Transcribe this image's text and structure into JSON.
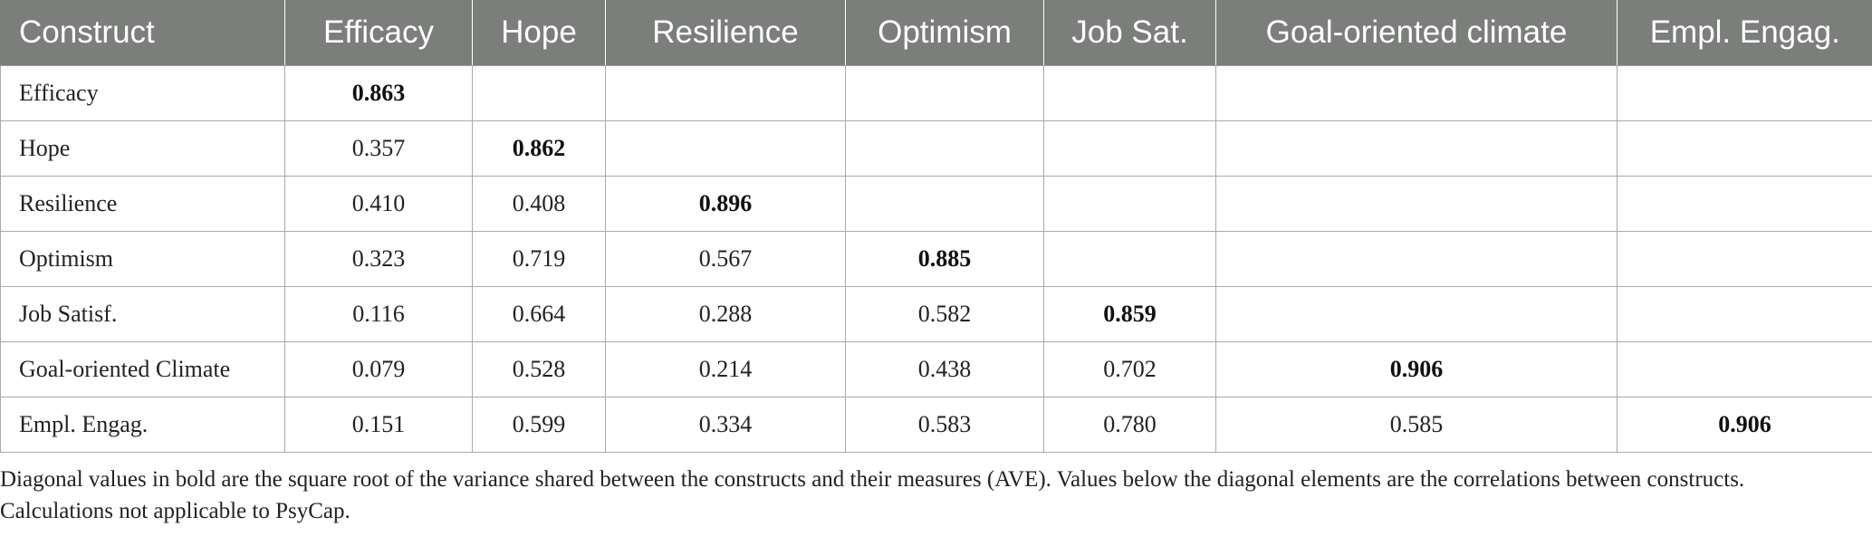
{
  "table": {
    "headers": [
      "Construct",
      "Efficacy",
      "Hope",
      "Resilience",
      "Optimism",
      "Job Sat.",
      "Goal-oriented climate",
      "Empl. Engag."
    ],
    "rows": [
      {
        "label": "Efficacy",
        "cells": [
          "0.863",
          "",
          "",
          "",
          "",
          "",
          ""
        ],
        "diag": 0
      },
      {
        "label": "Hope",
        "cells": [
          "0.357",
          "0.862",
          "",
          "",
          "",
          "",
          ""
        ],
        "diag": 1
      },
      {
        "label": "Resilience",
        "cells": [
          "0.410",
          "0.408",
          "0.896",
          "",
          "",
          "",
          ""
        ],
        "diag": 2
      },
      {
        "label": "Optimism",
        "cells": [
          "0.323",
          "0.719",
          "0.567",
          "0.885",
          "",
          "",
          ""
        ],
        "diag": 3
      },
      {
        "label": "Job Satisf.",
        "cells": [
          "0.116",
          "0.664",
          "0.288",
          "0.582",
          "0.859",
          "",
          ""
        ],
        "diag": 4
      },
      {
        "label": "Goal-oriented Climate",
        "cells": [
          "0.079",
          "0.528",
          "0.214",
          "0.438",
          "0.702",
          "0.906",
          ""
        ],
        "diag": 5
      },
      {
        "label": "Empl. Engag.",
        "cells": [
          "0.151",
          "0.599",
          "0.334",
          "0.583",
          "0.780",
          "0.585",
          "0.906"
        ],
        "diag": 6
      }
    ]
  },
  "note": "Diagonal values in bold are the square root of the variance shared between the constructs and their measures (AVE). Values below the diagonal elements are the correlations between constructs. Calculations not applicable to PsyCap.",
  "colors": {
    "header_bg": "#7b7e7b",
    "header_text": "#ffffff",
    "grid": "#a9a9a9"
  }
}
